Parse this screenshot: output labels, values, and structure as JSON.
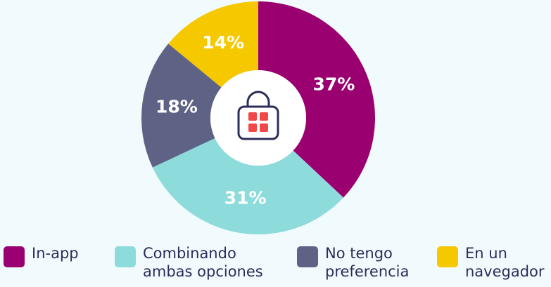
{
  "chart_data": {
    "type": "donut",
    "categories": [
      "In-app",
      "Combinando ambas opciones",
      "No tengo preferencia",
      "En un navegador"
    ],
    "values": [
      37,
      31,
      18,
      14
    ],
    "value_labels": [
      "37%",
      "31%",
      "18%",
      "14%"
    ],
    "colors": [
      "#9b0071",
      "#8edbdb",
      "#5e6385",
      "#f6c800"
    ],
    "legend": "bottom"
  }
}
